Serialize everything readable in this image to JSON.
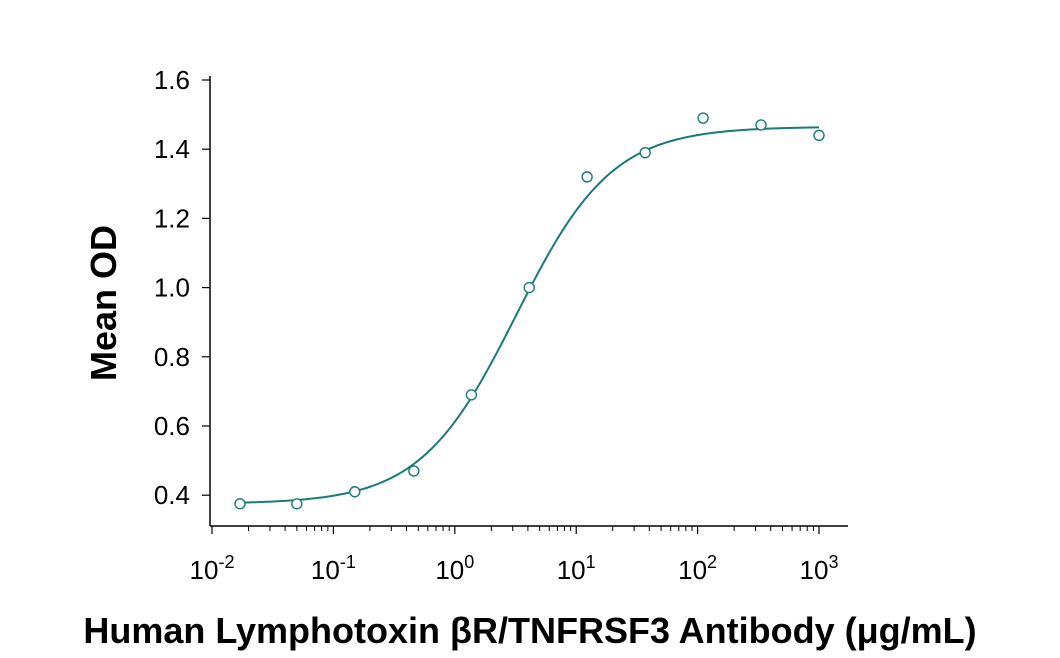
{
  "chart_data": {
    "type": "scatter",
    "title": "",
    "xlabel": "Human Lymphotoxin βR/TNFRSF3 Antibody (μg/mL)",
    "ylabel": "Mean OD",
    "x_scale": "log",
    "xlim": [
      0.01,
      1000
    ],
    "ylim": [
      0.32,
      1.6
    ],
    "x_ticks": [
      {
        "base": "10",
        "exp": "-2"
      },
      {
        "base": "10",
        "exp": "-1"
      },
      {
        "base": "10",
        "exp": "0"
      },
      {
        "base": "10",
        "exp": "1"
      },
      {
        "base": "10",
        "exp": "2"
      },
      {
        "base": "10",
        "exp": "3"
      }
    ],
    "y_ticks": [
      "0.4",
      "0.6",
      "0.8",
      "1.0",
      "1.2",
      "1.4",
      "1.6"
    ],
    "grid": false,
    "legend": "none",
    "colors": {
      "series": "#1a7a7a",
      "axis": "#000000"
    },
    "series": [
      {
        "marker": "open-circle",
        "x": [
          0.017,
          0.05,
          0.15,
          0.46,
          1.37,
          4.1,
          12.3,
          37,
          111,
          333,
          1000
        ],
        "y": [
          0.375,
          0.375,
          0.41,
          0.47,
          0.69,
          1.0,
          1.32,
          1.39,
          1.49,
          1.47,
          1.44
        ]
      }
    ],
    "fit": {
      "type": "4PL",
      "bottom": 0.375,
      "top": 1.465,
      "ec50": 3.2,
      "hill": 1.1
    }
  }
}
